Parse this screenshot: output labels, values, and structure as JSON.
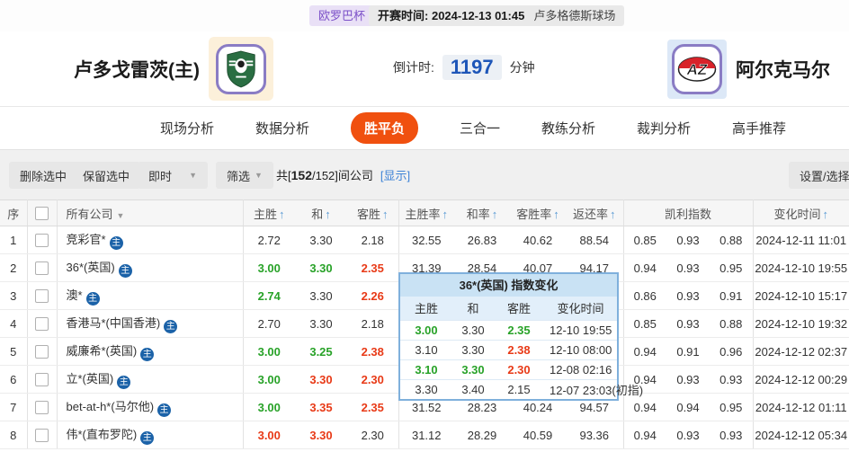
{
  "colors": {
    "accent": "#f0500f",
    "up": "#28a228",
    "down": "#e83a17",
    "link": "#3d82d6",
    "countdown": "#1e56b8",
    "home_badge_bg": "#1b62a8",
    "popup_border": "#7fb0dc"
  },
  "icons": {
    "sort_asc": "↑",
    "dropdown_caret": "▼",
    "home_marker": "主"
  },
  "header": {
    "league_badge": "欧罗巴杯",
    "kickoff_label": "开赛时间:",
    "kickoff_time": "2024-12-13 01:45",
    "venue": "卢多格德斯球场"
  },
  "teams": {
    "home_name": "卢多戈雷茨(主)",
    "away_name": "阿尔克马尔",
    "countdown_label": "倒计时:",
    "countdown_value": "1197",
    "countdown_unit": "分钟"
  },
  "tabs": [
    {
      "key": "live-analysis",
      "label": "现场分析",
      "active": false
    },
    {
      "key": "data-analysis",
      "label": "数据分析",
      "active": false
    },
    {
      "key": "win-draw-loss",
      "label": "胜平负",
      "active": true
    },
    {
      "key": "three-in-one",
      "label": "三合一",
      "active": false
    },
    {
      "key": "coach-analysis",
      "label": "教练分析",
      "active": false
    },
    {
      "key": "referee-analysis",
      "label": "裁判分析",
      "active": false
    },
    {
      "key": "expert-picks",
      "label": "高手推荐",
      "active": false
    }
  ],
  "toolbar": {
    "delete_selected": "删除选中",
    "keep_selected": "保留选中",
    "time_filter": "即时",
    "filter": "筛选",
    "count_prefix": "共[",
    "count_bold": "152",
    "count_suffix": "/152]间公司",
    "show_link": "[显示]",
    "settings": "设置/选择"
  },
  "table": {
    "headers": {
      "seq": "序",
      "company": "所有公司",
      "home": "主胜",
      "draw": "和",
      "away": "客胜",
      "home_rate": "主胜率",
      "draw_rate": "和率",
      "away_rate": "客胜率",
      "return_rate": "返还率",
      "kelly": "凯利指数",
      "change_time": "变化时间"
    },
    "rows": [
      {
        "seq": "1",
        "company": "竞彩官*",
        "odds": [
          "2.72",
          "3.30",
          "2.18"
        ],
        "trends": [
          "flat",
          "flat",
          "flat"
        ],
        "rates": [
          "32.55",
          "26.83",
          "40.62",
          "88.54"
        ],
        "kelly": [
          "0.85",
          "0.93",
          "0.88"
        ],
        "time": "2024-12-11 11:01"
      },
      {
        "seq": "2",
        "company": "36*(英国)",
        "odds": [
          "3.00",
          "3.30",
          "2.35"
        ],
        "trends": [
          "up",
          "up",
          "down"
        ],
        "rates": [
          "31.39",
          "28.54",
          "40.07",
          "94.17"
        ],
        "kelly": [
          "0.94",
          "0.93",
          "0.95"
        ],
        "time": "2024-12-10 19:55"
      },
      {
        "seq": "3",
        "company": "澳*",
        "odds": [
          "2.74",
          "3.30",
          "2.26"
        ],
        "trends": [
          "up",
          "flat",
          "down"
        ],
        "rates": [
          "",
          "",
          "",
          ""
        ],
        "kelly": [
          "0.86",
          "0.93",
          "0.91"
        ],
        "time": "2024-12-10 15:17"
      },
      {
        "seq": "4",
        "company": "香港马*(中国香港)",
        "odds": [
          "2.70",
          "3.30",
          "2.18"
        ],
        "trends": [
          "flat",
          "flat",
          "flat"
        ],
        "rates": [
          "",
          "",
          "",
          ""
        ],
        "kelly": [
          "0.85",
          "0.93",
          "0.88"
        ],
        "time": "2024-12-10 19:32"
      },
      {
        "seq": "5",
        "company": "威廉希*(英国)",
        "odds": [
          "3.00",
          "3.25",
          "2.38"
        ],
        "trends": [
          "up",
          "up",
          "down"
        ],
        "rates": [
          "",
          "",
          "",
          ""
        ],
        "kelly": [
          "0.94",
          "0.91",
          "0.96"
        ],
        "time": "2024-12-12 02:37"
      },
      {
        "seq": "6",
        "company": "立*(英国)",
        "odds": [
          "3.00",
          "3.30",
          "2.30"
        ],
        "trends": [
          "up",
          "down",
          "down"
        ],
        "rates": [
          "",
          "",
          "",
          ""
        ],
        "kelly": [
          "0.94",
          "0.93",
          "0.93"
        ],
        "time": "2024-12-12 00:29"
      },
      {
        "seq": "7",
        "company": "bet-at-h*(马尔他)",
        "odds": [
          "3.00",
          "3.35",
          "2.35"
        ],
        "trends": [
          "up",
          "down",
          "down"
        ],
        "rates": [
          "31.52",
          "28.23",
          "40.24",
          "94.57"
        ],
        "kelly": [
          "0.94",
          "0.94",
          "0.95"
        ],
        "time": "2024-12-12 01:11"
      },
      {
        "seq": "8",
        "company": "伟*(直布罗陀)",
        "odds": [
          "3.00",
          "3.30",
          "2.30"
        ],
        "trends": [
          "down",
          "down",
          "flat"
        ],
        "rates": [
          "31.12",
          "28.29",
          "40.59",
          "93.36"
        ],
        "kelly": [
          "0.94",
          "0.93",
          "0.93"
        ],
        "time": "2024-12-12 05:34"
      }
    ]
  },
  "popup": {
    "title": "36*(英国) 指数变化",
    "headers": [
      "主胜",
      "和",
      "客胜",
      "变化时间"
    ],
    "rows": [
      {
        "odds": [
          "3.00",
          "3.30",
          "2.35"
        ],
        "trends": [
          "up",
          "flat",
          "up"
        ],
        "time": "12-10 19:55"
      },
      {
        "odds": [
          "3.10",
          "3.30",
          "2.38"
        ],
        "trends": [
          "flat",
          "flat",
          "down"
        ],
        "time": "12-10 08:00"
      },
      {
        "odds": [
          "3.10",
          "3.30",
          "2.30"
        ],
        "trends": [
          "up",
          "up",
          "down"
        ],
        "time": "12-08 02:16"
      },
      {
        "odds": [
          "3.30",
          "3.40",
          "2.15"
        ],
        "trends": [
          "flat",
          "flat",
          "flat"
        ],
        "time": "12-07 23:03(初指)"
      }
    ]
  }
}
